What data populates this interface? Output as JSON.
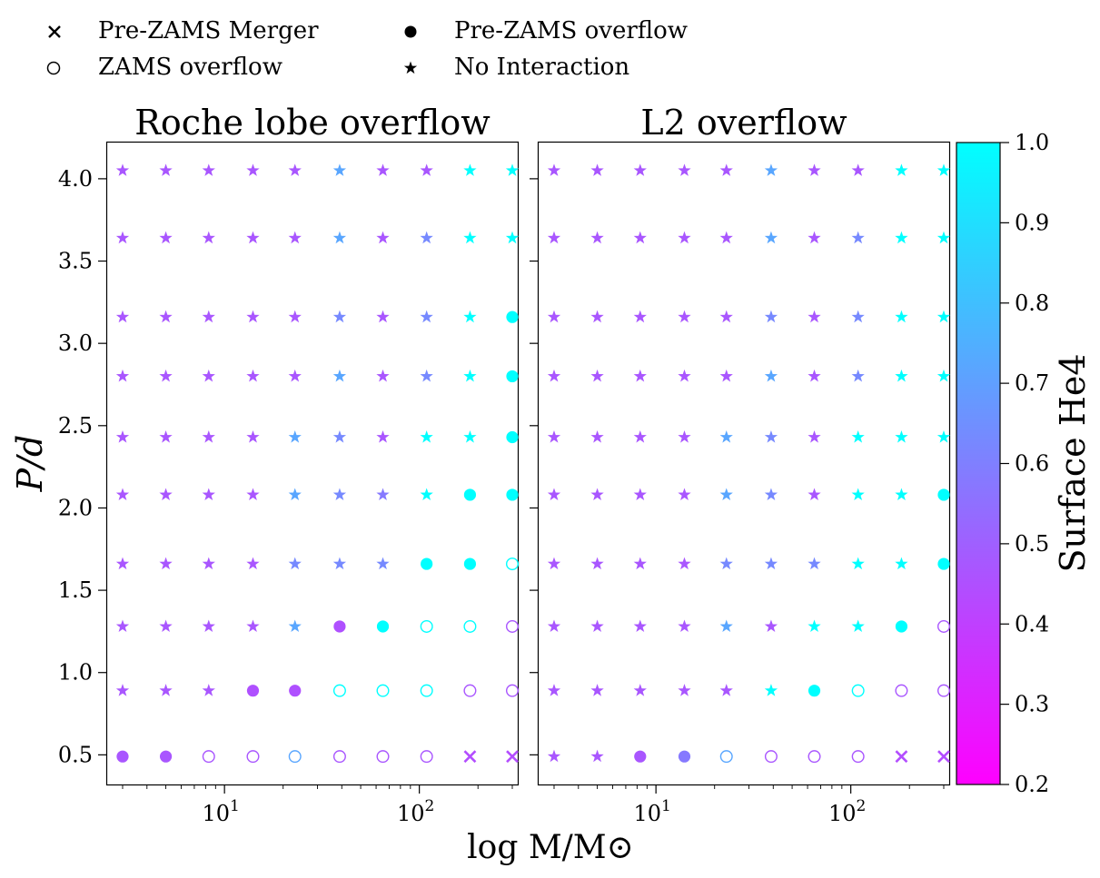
{
  "legend": [
    {
      "marker": "x",
      "label": "Pre-ZAMS Merger"
    },
    {
      "marker": "filled",
      "label": "Pre-ZAMS overflow"
    },
    {
      "marker": "open",
      "label": "ZAMS overflow"
    },
    {
      "marker": "star",
      "label": "No Interaction"
    }
  ],
  "panels": [
    {
      "title": "Roche lobe overflow"
    },
    {
      "title": "L2 overflow"
    }
  ],
  "xlabel": "log M/M⊙",
  "ylabel": "P/d",
  "colorbar": {
    "label": "Surface He4",
    "range": [
      0.2,
      1.0
    ],
    "ticks": [
      "0.2",
      "0.3",
      "0.4",
      "0.5",
      "0.6",
      "0.7",
      "0.8",
      "0.9",
      "1.0"
    ],
    "colormap": "cool",
    "colors": [
      "#ff00ff",
      "#00ffff"
    ]
  },
  "chart_data": [
    {
      "type": "scatter",
      "title": "Roche lobe overflow",
      "xlabel": "log M/M⊙",
      "ylabel": "P/d",
      "xscale": "log",
      "xlim": [
        2.5,
        320
      ],
      "ylim": [
        0.32,
        4.22
      ],
      "xticks": [
        "10^1",
        "10^2"
      ],
      "yticks": [
        "0.5",
        "1.0",
        "1.5",
        "2.0",
        "2.5",
        "3.0",
        "3.5",
        "4.0"
      ],
      "masses": [
        3,
        5,
        8.3,
        14,
        23,
        39,
        65,
        109,
        182,
        300
      ],
      "periods": [
        0.49,
        0.89,
        1.28,
        1.66,
        2.08,
        2.43,
        2.8,
        3.16,
        3.64,
        4.05
      ],
      "markers": [
        [
          "filled",
          "filled",
          "open",
          "open",
          "open",
          "open",
          "open",
          "open",
          "x",
          "x"
        ],
        [
          "star",
          "star",
          "star",
          "filled",
          "filled",
          "open",
          "open",
          "open",
          "open",
          "open"
        ],
        [
          "star",
          "star",
          "star",
          "star",
          "star",
          "filled",
          "filled",
          "open",
          "open",
          "open"
        ],
        [
          "star",
          "star",
          "star",
          "star",
          "star",
          "star",
          "star",
          "filled",
          "filled",
          "open"
        ],
        [
          "star",
          "star",
          "star",
          "star",
          "star",
          "star",
          "star",
          "star",
          "filled",
          "filled"
        ],
        [
          "star",
          "star",
          "star",
          "star",
          "star",
          "star",
          "star",
          "star",
          "star",
          "filled"
        ],
        [
          "star",
          "star",
          "star",
          "star",
          "star",
          "star",
          "star",
          "star",
          "star",
          "filled"
        ],
        [
          "star",
          "star",
          "star",
          "star",
          "star",
          "star",
          "star",
          "star",
          "star",
          "filled"
        ],
        [
          "star",
          "star",
          "star",
          "star",
          "star",
          "star",
          "star",
          "star",
          "star",
          "star"
        ],
        [
          "star",
          "star",
          "star",
          "star",
          "star",
          "star",
          "star",
          "star",
          "star",
          "star"
        ]
      ],
      "surface_he4": [
        [
          0.47,
          0.47,
          0.47,
          0.47,
          0.72,
          0.47,
          0.47,
          0.47,
          0.44,
          0.44
        ],
        [
          0.47,
          0.47,
          0.47,
          0.45,
          0.45,
          1.0,
          1.0,
          1.0,
          0.47,
          0.47
        ],
        [
          0.47,
          0.47,
          0.47,
          0.47,
          0.72,
          0.45,
          1.0,
          1.0,
          1.0,
          0.47
        ],
        [
          0.47,
          0.47,
          0.47,
          0.47,
          0.63,
          0.63,
          0.63,
          1.0,
          1.0,
          1.0
        ],
        [
          0.47,
          0.47,
          0.47,
          0.47,
          0.72,
          0.63,
          0.58,
          1.0,
          1.0,
          1.0
        ],
        [
          0.47,
          0.47,
          0.47,
          0.47,
          0.72,
          0.63,
          0.47,
          1.0,
          1.0,
          1.0
        ],
        [
          0.47,
          0.47,
          0.47,
          0.47,
          0.47,
          0.72,
          0.47,
          0.63,
          1.0,
          1.0
        ],
        [
          0.47,
          0.47,
          0.47,
          0.47,
          0.47,
          0.63,
          0.47,
          0.63,
          1.0,
          1.0
        ],
        [
          0.47,
          0.47,
          0.47,
          0.47,
          0.47,
          0.72,
          0.47,
          0.63,
          1.0,
          1.0
        ],
        [
          0.47,
          0.47,
          0.47,
          0.47,
          0.47,
          0.72,
          0.47,
          0.47,
          1.0,
          1.0
        ]
      ]
    },
    {
      "type": "scatter",
      "title": "L2 overflow",
      "xlabel": "log M/M⊙",
      "ylabel": "",
      "xscale": "log",
      "xlim": [
        2.5,
        320
      ],
      "ylim": [
        0.32,
        4.22
      ],
      "xticks": [
        "10^1",
        "10^2"
      ],
      "yticks": [
        "0.5",
        "1.0",
        "1.5",
        "2.0",
        "2.5",
        "3.0",
        "3.5",
        "4.0"
      ],
      "masses": [
        3,
        5,
        8.3,
        14,
        23,
        39,
        65,
        109,
        182,
        300
      ],
      "periods": [
        0.49,
        0.89,
        1.28,
        1.66,
        2.08,
        2.43,
        2.8,
        3.16,
        3.64,
        4.05
      ],
      "markers": [
        [
          "star",
          "star",
          "filled",
          "filled",
          "open",
          "open",
          "open",
          "open",
          "x",
          "x"
        ],
        [
          "star",
          "star",
          "star",
          "star",
          "star",
          "star",
          "filled",
          "open",
          "open",
          "open"
        ],
        [
          "star",
          "star",
          "star",
          "star",
          "star",
          "star",
          "star",
          "star",
          "filled",
          "open"
        ],
        [
          "star",
          "star",
          "star",
          "star",
          "star",
          "star",
          "star",
          "star",
          "star",
          "filled"
        ],
        [
          "star",
          "star",
          "star",
          "star",
          "star",
          "star",
          "star",
          "star",
          "star",
          "filled"
        ],
        [
          "star",
          "star",
          "star",
          "star",
          "star",
          "star",
          "star",
          "star",
          "star",
          "star"
        ],
        [
          "star",
          "star",
          "star",
          "star",
          "star",
          "star",
          "star",
          "star",
          "star",
          "star"
        ],
        [
          "star",
          "star",
          "star",
          "star",
          "star",
          "star",
          "star",
          "star",
          "star",
          "star"
        ],
        [
          "star",
          "star",
          "star",
          "star",
          "star",
          "star",
          "star",
          "star",
          "star",
          "star"
        ],
        [
          "star",
          "star",
          "star",
          "star",
          "star",
          "star",
          "star",
          "star",
          "star",
          "star"
        ]
      ],
      "surface_he4": [
        [
          0.47,
          0.47,
          0.47,
          0.58,
          0.72,
          0.47,
          0.47,
          0.47,
          0.44,
          0.44
        ],
        [
          0.47,
          0.47,
          0.47,
          0.47,
          0.47,
          1.0,
          1.0,
          1.0,
          0.47,
          0.47
        ],
        [
          0.47,
          0.47,
          0.47,
          0.47,
          0.72,
          0.47,
          1.0,
          1.0,
          1.0,
          0.47
        ],
        [
          0.47,
          0.47,
          0.47,
          0.47,
          0.63,
          0.63,
          0.63,
          1.0,
          1.0,
          1.0
        ],
        [
          0.47,
          0.47,
          0.47,
          0.47,
          0.72,
          0.63,
          0.47,
          1.0,
          1.0,
          1.0
        ],
        [
          0.47,
          0.47,
          0.47,
          0.47,
          0.72,
          0.63,
          0.47,
          1.0,
          1.0,
          1.0
        ],
        [
          0.47,
          0.47,
          0.47,
          0.47,
          0.47,
          0.72,
          0.47,
          0.63,
          1.0,
          1.0
        ],
        [
          0.47,
          0.47,
          0.47,
          0.47,
          0.47,
          0.63,
          0.47,
          0.63,
          1.0,
          1.0
        ],
        [
          0.47,
          0.47,
          0.47,
          0.47,
          0.47,
          0.72,
          0.47,
          0.63,
          1.0,
          1.0
        ],
        [
          0.47,
          0.47,
          0.47,
          0.47,
          0.47,
          0.72,
          0.47,
          0.47,
          1.0,
          1.0
        ]
      ]
    }
  ]
}
